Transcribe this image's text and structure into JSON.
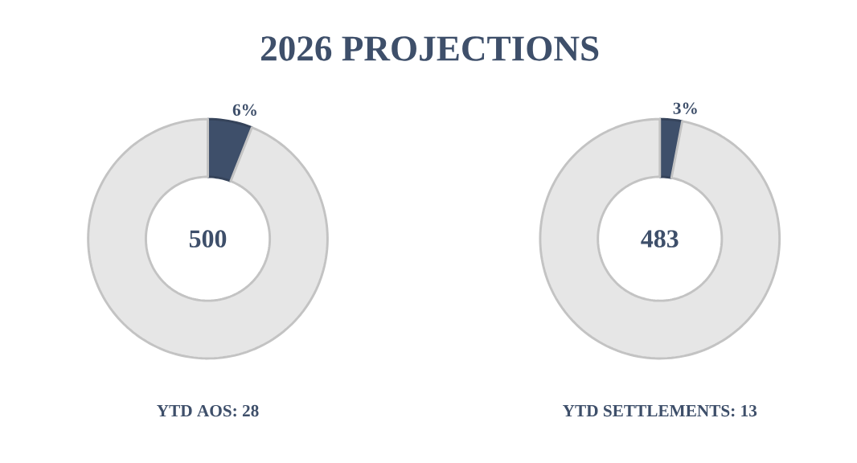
{
  "chart_data": [
    {
      "type": "donut",
      "title": "2026 PROJECTIONS",
      "categories": [
        null,
        null
      ],
      "values": [
        6,
        94
      ],
      "colors": [
        "#3e4f6a",
        "#e6e6e6"
      ],
      "value_labels": [
        "6%",
        null
      ],
      "annotations": [
        "500",
        "YTD AOS: 28"
      ]
    },
    {
      "type": "donut",
      "categories": [
        null,
        null
      ],
      "values": [
        3,
        97
      ],
      "colors": [
        "#3e4f6a",
        "#e6e6e6"
      ],
      "value_labels": [
        "3%",
        null
      ],
      "annotations": [
        "483",
        "YTD SETTLEMENTS: 13"
      ]
    }
  ]
}
